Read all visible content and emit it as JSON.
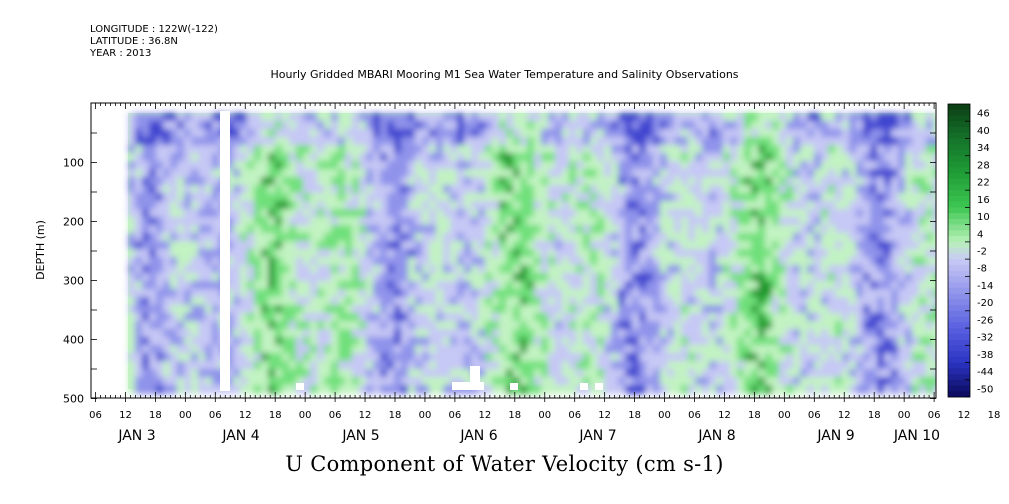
{
  "meta": {
    "longitude": "LONGITUDE : 122W(-122)",
    "latitude": "LATITUDE : 36.8N",
    "year": "YEAR : 2013"
  },
  "title": "Hourly Gridded MBARI Mooring M1 Sea Water Temperature and Salinity Observations",
  "x_title": "U Component of Water Velocity (cm s-1)",
  "colors": {
    "negative_light": "#c6c8f5",
    "negative_mid": "#8f93ea",
    "negative_dark": "#3f45d0",
    "positive_light": "#c2f3c2",
    "positive_mid": "#6fe07a",
    "positive_dark": "#1a9a2c",
    "colorbar_top": "#0b3d14",
    "colorbar_bottom": "#0a0a5a"
  },
  "chart_data": {
    "type": "heatmap",
    "title": "Hourly Gridded MBARI Mooring M1 Sea Water Temperature and Salinity Observations",
    "xlabel": "U Component of Water Velocity (cm s-1)",
    "ylabel": "DEPTH (m)",
    "ylim": [
      500,
      0
    ],
    "y_ticks": [
      100,
      200,
      300,
      400,
      500
    ],
    "y_tick_labels": [
      "100",
      "200",
      "300",
      "400",
      "500"
    ],
    "x_hour_labels": [
      "06",
      "12",
      "18",
      "00",
      "06",
      "12",
      "18",
      "00",
      "06",
      "12",
      "18",
      "00",
      "06",
      "12",
      "18",
      "00",
      "06",
      "12",
      "18",
      "00",
      "06",
      "12",
      "18",
      "00",
      "06",
      "12",
      "18",
      "00",
      "06",
      "12",
      "18",
      "00",
      "06",
      "12",
      "18",
      "00",
      "06"
    ],
    "x_day_labels": [
      "JAN  3",
      "JAN  4",
      "JAN  5",
      "JAN  6",
      "JAN  7",
      "JAN  8",
      "JAN  9",
      "JAN 10"
    ],
    "colorbar_levels": [
      "46",
      "40",
      "34",
      "28",
      "22",
      "16",
      "10",
      "4",
      "-2",
      "-8",
      "-14",
      "-20",
      "-26",
      "-32",
      "-38",
      "-44",
      "-50"
    ],
    "colorbar_range": [
      -50,
      52
    ],
    "data_gaps": [
      "JAN 3 00-12",
      "JAN 4 06-08"
    ]
  }
}
